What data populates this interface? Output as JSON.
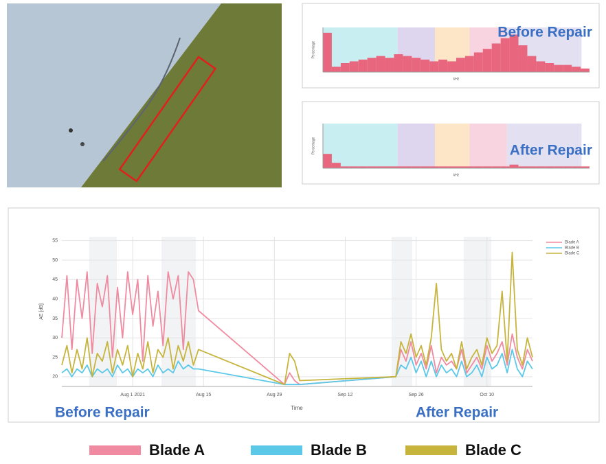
{
  "chart_data": [
    {
      "type": "histogram",
      "title": "Before Repair",
      "y_label": "Percentage",
      "x_label": "kHz",
      "color": "#e8677e",
      "values": [
        22,
        3,
        5,
        6,
        7,
        8,
        9,
        8,
        10,
        9,
        8,
        7,
        6,
        7,
        6,
        8,
        9,
        11,
        13,
        16,
        19,
        21,
        15,
        9,
        6,
        5,
        4,
        4,
        3,
        2
      ],
      "ylim": [
        0,
        25
      ]
    },
    {
      "type": "histogram",
      "title": "After Repair",
      "y_label": "Percentage",
      "x_label": "kHz",
      "color": "#e8677e",
      "values": [
        8,
        3,
        1,
        1,
        1,
        1,
        1,
        1,
        1,
        1,
        1,
        1,
        1,
        1,
        1,
        1,
        1,
        1,
        1,
        1,
        1,
        2,
        1,
        1,
        1,
        1,
        1,
        1,
        1,
        1
      ],
      "ylim": [
        0,
        25
      ]
    },
    {
      "type": "line",
      "x_label": "Time",
      "y_label": "AE [dB]",
      "annotations": [
        "Before Repair",
        "After Repair"
      ],
      "x": [
        "2021-07-18",
        "2021-07-19",
        "2021-07-20",
        "2021-07-21",
        "2021-07-22",
        "2021-07-23",
        "2021-07-24",
        "2021-07-25",
        "2021-07-26",
        "2021-07-27",
        "2021-07-28",
        "2021-07-29",
        "2021-07-30",
        "2021-07-31",
        "2021-08-01",
        "2021-08-02",
        "2021-08-03",
        "2021-08-04",
        "2021-08-05",
        "2021-08-06",
        "2021-08-07",
        "2021-08-08",
        "2021-08-09",
        "2021-08-10",
        "2021-08-11",
        "2021-08-12",
        "2021-08-13",
        "2021-08-14",
        "2021-08-31",
        "2021-09-01",
        "2021-09-02",
        "2021-09-03",
        "2021-09-22",
        "2021-09-23",
        "2021-09-24",
        "2021-09-25",
        "2021-09-26",
        "2021-09-27",
        "2021-09-28",
        "2021-09-29",
        "2021-09-30",
        "2021-10-01",
        "2021-10-02",
        "2021-10-03",
        "2021-10-04",
        "2021-10-05",
        "2021-10-06",
        "2021-10-07",
        "2021-10-08",
        "2021-10-09",
        "2021-10-10",
        "2021-10-11",
        "2021-10-12",
        "2021-10-13",
        "2021-10-14",
        "2021-10-15",
        "2021-10-16",
        "2021-10-17",
        "2021-10-18",
        "2021-10-19"
      ],
      "series": [
        {
          "name": "Blade A",
          "color": "#f08aa0",
          "values": [
            30,
            46,
            27,
            45,
            35,
            47,
            26,
            44,
            38,
            46,
            25,
            43,
            30,
            47,
            36,
            45,
            24,
            46,
            33,
            42,
            28,
            47,
            40,
            46,
            27,
            47,
            45,
            37,
            18,
            21,
            19,
            18,
            20,
            27,
            24,
            29,
            23,
            26,
            22,
            28,
            21,
            25,
            23,
            24,
            22,
            27,
            21,
            23,
            25,
            22,
            28,
            24,
            26,
            29,
            23,
            31,
            25,
            22,
            27,
            24
          ]
        },
        {
          "name": "Blade B",
          "color": "#5bc8e8",
          "values": [
            21,
            22,
            20,
            22,
            21,
            23,
            20,
            22,
            21,
            22,
            20,
            23,
            21,
            22,
            20,
            22,
            21,
            22,
            20,
            23,
            21,
            22,
            21,
            24,
            22,
            23,
            22,
            22,
            18,
            18,
            18,
            18,
            20,
            23,
            22,
            25,
            21,
            24,
            20,
            24,
            20,
            23,
            21,
            22,
            20,
            24,
            20,
            21,
            23,
            20,
            25,
            22,
            23,
            26,
            21,
            27,
            22,
            20,
            24,
            22
          ]
        },
        {
          "name": "Blade C",
          "color": "#c6b43c",
          "values": [
            23,
            28,
            21,
            27,
            22,
            30,
            20,
            26,
            24,
            29,
            21,
            27,
            23,
            28,
            20,
            26,
            22,
            29,
            21,
            27,
            25,
            30,
            22,
            28,
            24,
            29,
            23,
            27,
            18,
            26,
            24,
            19,
            20,
            29,
            26,
            31,
            25,
            28,
            23,
            30,
            44,
            27,
            24,
            26,
            22,
            29,
            22,
            25,
            27,
            23,
            30,
            26,
            28,
            42,
            24,
            52,
            27,
            23,
            30,
            25
          ]
        }
      ],
      "xlim": [
        "2021-07-18",
        "2021-10-19"
      ],
      "xticks": [
        {
          "value": "2021-08-01",
          "label": "Aug 1 2021"
        },
        {
          "value": "2021-08-15",
          "label": "Aug 15"
        },
        {
          "value": "2021-08-29",
          "label": "Aug 29"
        },
        {
          "value": "2021-09-12",
          "label": "Sep 12"
        },
        {
          "value": "2021-09-26",
          "label": "Sep 26"
        },
        {
          "value": "2021-10-10",
          "label": "Oct 10"
        }
      ],
      "ylim": [
        17.5,
        56
      ],
      "yticks": [
        20,
        25,
        30,
        35,
        40,
        45,
        50,
        55
      ],
      "grid": true,
      "legend": "top-right"
    }
  ]
}
